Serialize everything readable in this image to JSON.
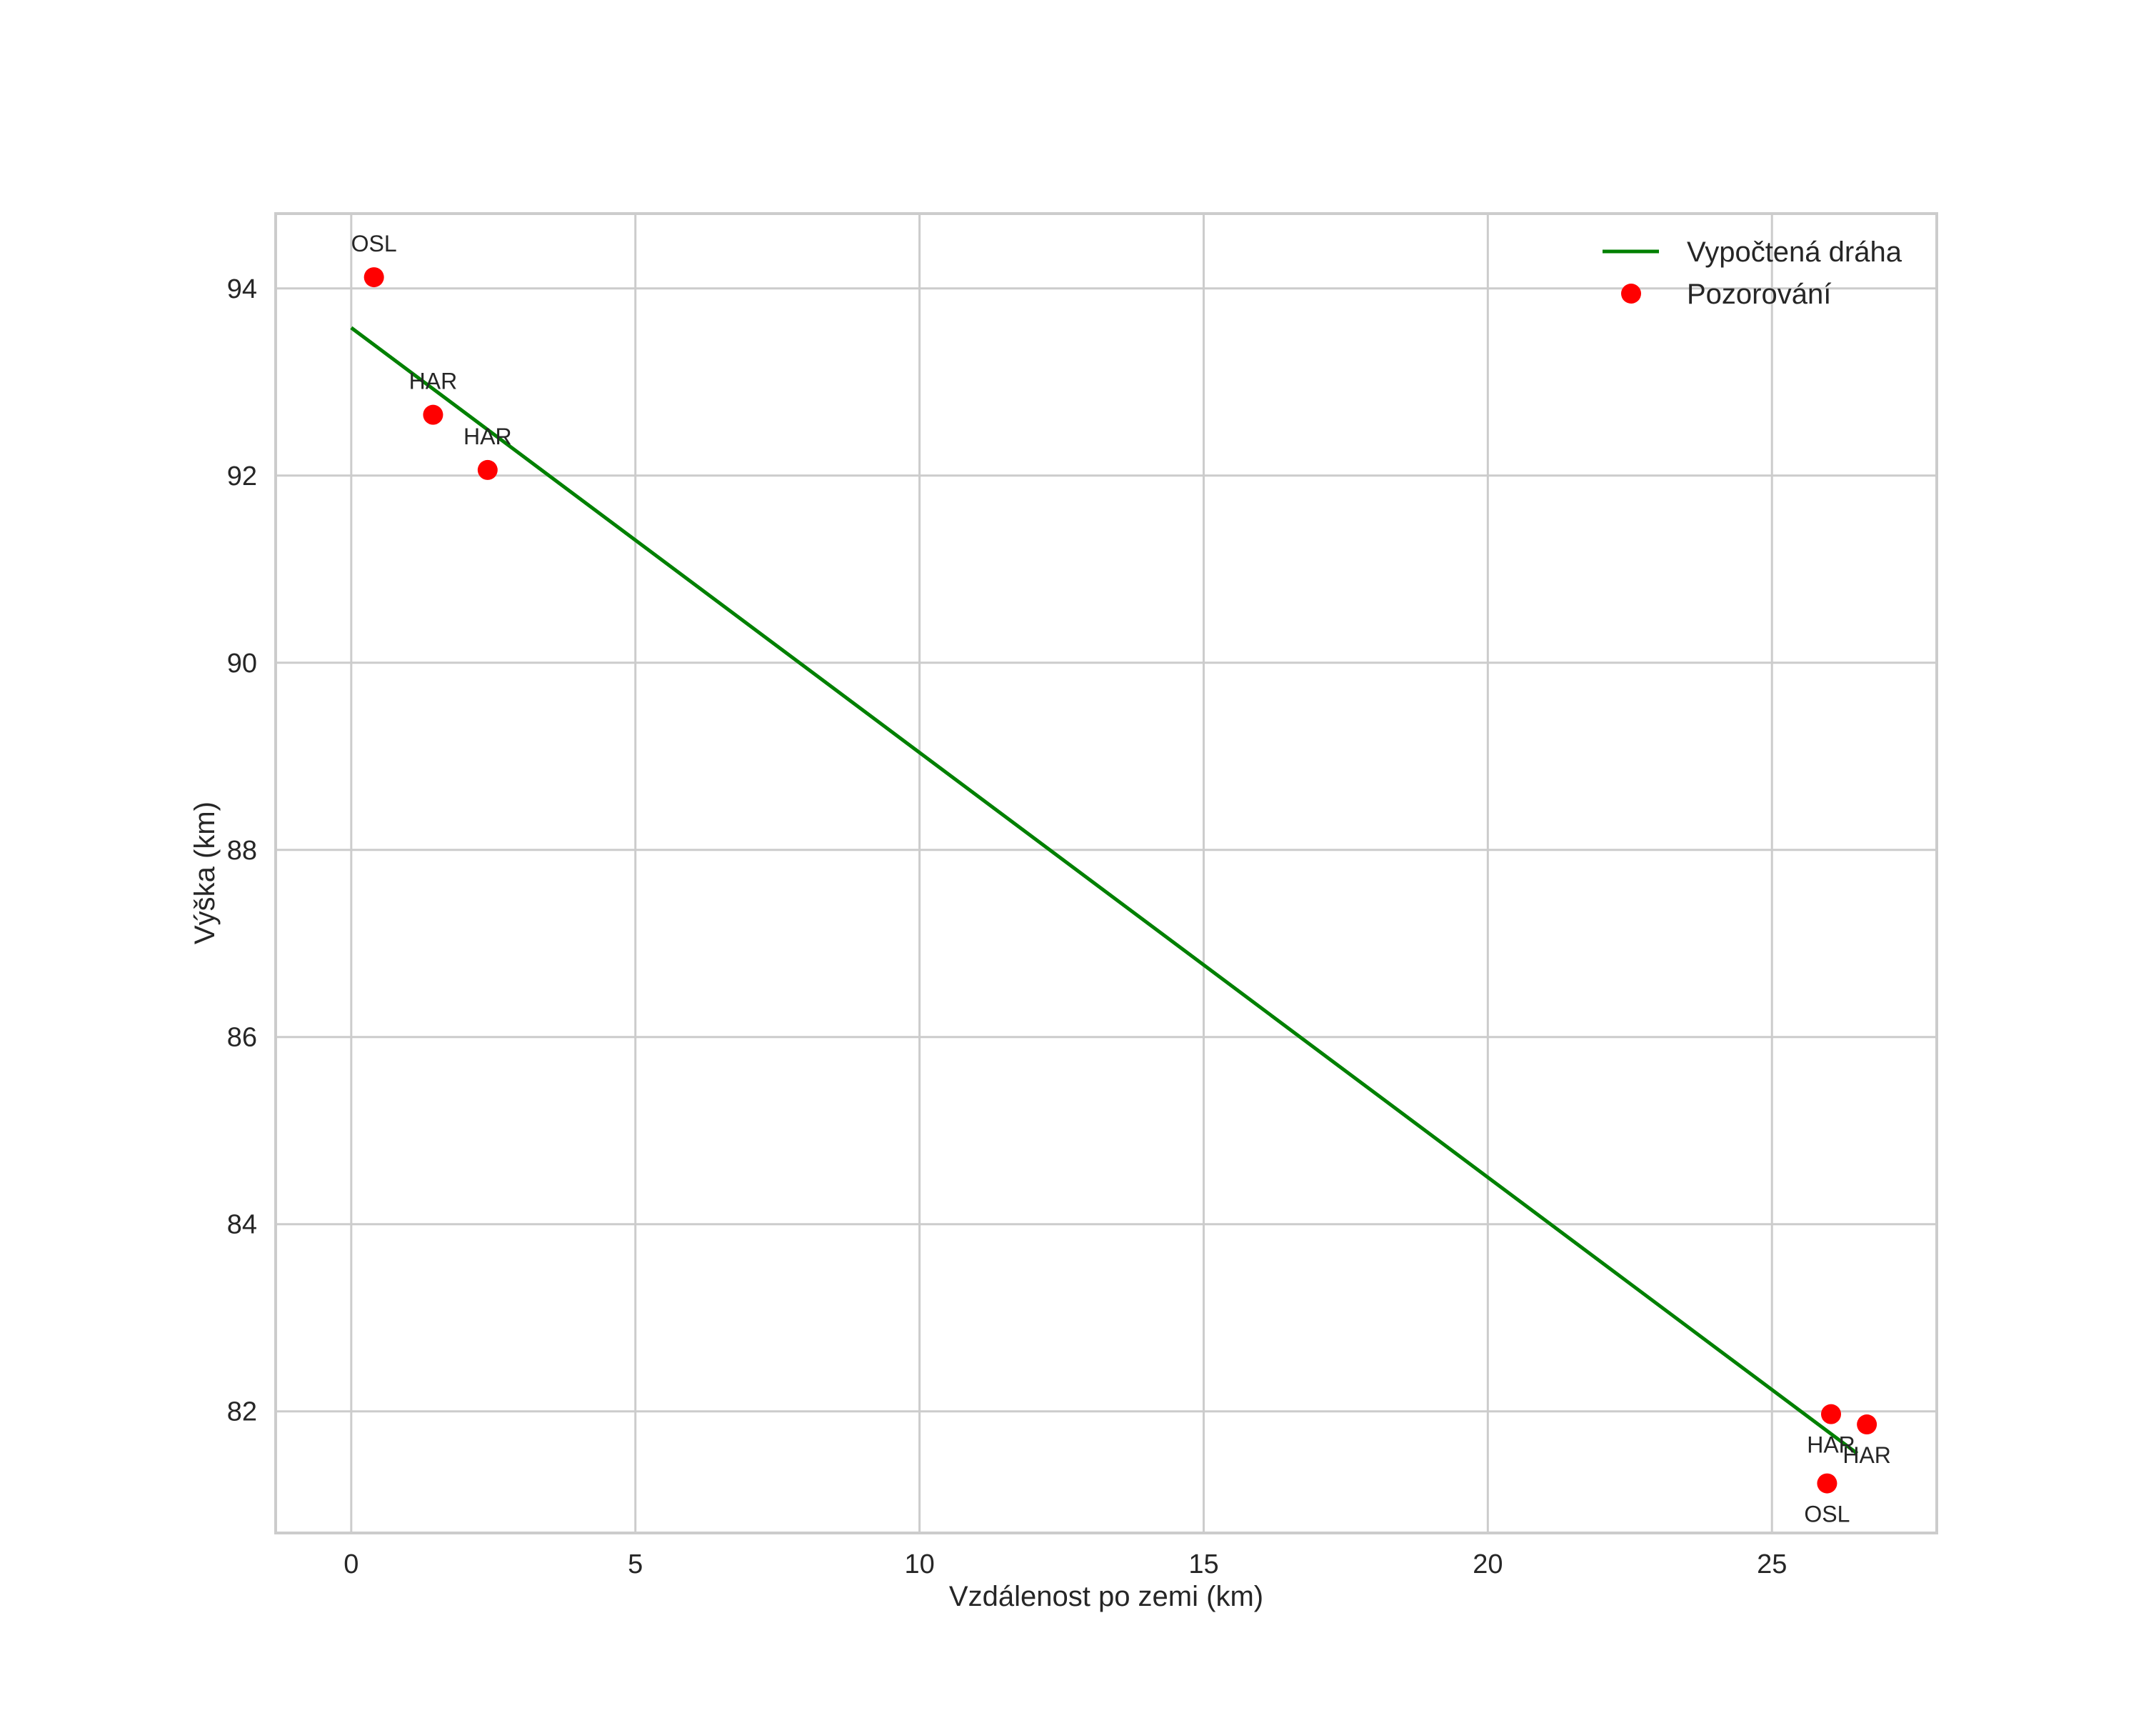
{
  "chart_data": {
    "type": "line+scatter",
    "title": "",
    "xlabel": "Vzdálenost po zemi (km)",
    "ylabel": "Výška (km)",
    "xlim": [
      -1.33,
      27.9
    ],
    "ylim": [
      80.7,
      94.8
    ],
    "xticks": [
      0,
      5,
      10,
      15,
      20,
      25
    ],
    "yticks": [
      82,
      84,
      86,
      88,
      90,
      92,
      94
    ],
    "grid": true,
    "legend_position": "upper right",
    "series": [
      {
        "name": "Vypočtená dráha",
        "type": "line",
        "color": "#008000",
        "x": [
          0,
          26.5
        ],
        "y": [
          93.58,
          81.55
        ]
      },
      {
        "name": "Pozorování",
        "type": "scatter",
        "color": "#ff0000",
        "points": [
          {
            "x": 0.4,
            "y": 94.12,
            "label": "OSL",
            "label_pos": "above"
          },
          {
            "x": 1.44,
            "y": 92.65,
            "label": "HAR",
            "label_pos": "above"
          },
          {
            "x": 2.4,
            "y": 92.06,
            "label": "HAR",
            "label_pos": "above"
          },
          {
            "x": 26.04,
            "y": 81.97,
            "label": "HAR",
            "label_pos": "below"
          },
          {
            "x": 26.67,
            "y": 81.86,
            "label": "HAR",
            "label_pos": "below"
          },
          {
            "x": 25.97,
            "y": 81.23,
            "label": "OSL",
            "label_pos": "below"
          }
        ]
      }
    ]
  },
  "colors": {
    "grid": "#cccccc",
    "frame": "#cccccc",
    "text": "#262626",
    "line": "#008000",
    "points": "#ff0000"
  }
}
